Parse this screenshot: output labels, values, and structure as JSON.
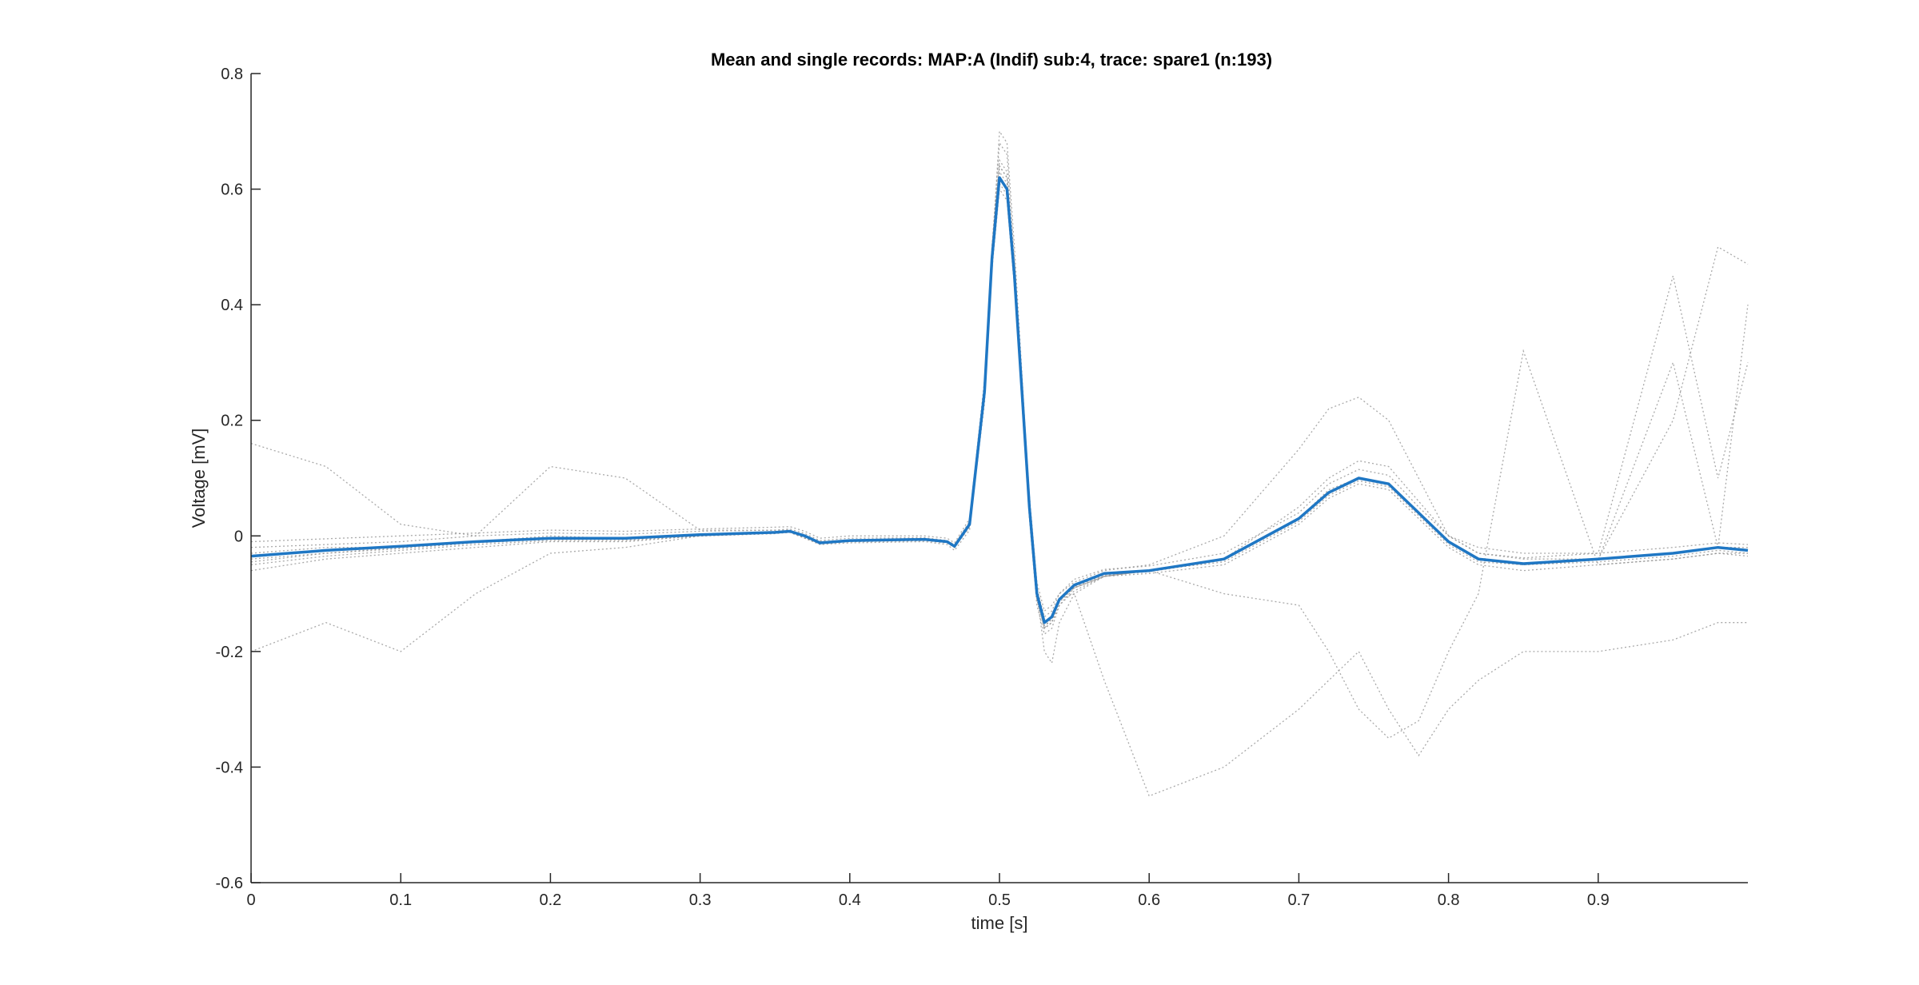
{
  "chart_data": {
    "type": "line",
    "title": "Mean and single records: MAP:A (Indif) sub:4, trace: spare1 (n:193)",
    "xlabel": "time [s]",
    "ylabel": "Voltage [mV]",
    "xlim": [
      0,
      1
    ],
    "ylim": [
      -0.6,
      0.8
    ],
    "xticks": [
      0,
      0.1,
      0.2,
      0.3,
      0.4,
      0.5,
      0.6,
      0.7,
      0.8,
      0.9
    ],
    "xtick_labels": [
      "0",
      "0.1",
      "0.2",
      "0.3",
      "0.4",
      "0.5",
      "0.6",
      "0.7",
      "0.8",
      "0.9"
    ],
    "yticks": [
      -0.6,
      -0.4,
      -0.2,
      0,
      0.2,
      0.4,
      0.6,
      0.8
    ],
    "ytick_labels": [
      "-0.6",
      "-0.4",
      "-0.2",
      "0",
      "0.2",
      "0.4",
      "0.6",
      "0.8"
    ],
    "grid": false,
    "colors": {
      "mean": "#1f77c4",
      "single": "#8c8c8c",
      "axis": "#262626"
    },
    "mean": {
      "x": [
        0,
        0.05,
        0.1,
        0.15,
        0.2,
        0.25,
        0.3,
        0.35,
        0.36,
        0.37,
        0.38,
        0.4,
        0.45,
        0.465,
        0.47,
        0.48,
        0.49,
        0.495,
        0.5,
        0.505,
        0.51,
        0.515,
        0.52,
        0.525,
        0.53,
        0.535,
        0.54,
        0.55,
        0.57,
        0.6,
        0.65,
        0.7,
        0.72,
        0.74,
        0.76,
        0.78,
        0.8,
        0.82,
        0.85,
        0.9,
        0.95,
        0.98,
        1.0
      ],
      "y": [
        -0.035,
        -0.025,
        -0.018,
        -0.01,
        -0.004,
        -0.004,
        0.002,
        0.006,
        0.008,
        0.0,
        -0.012,
        -0.008,
        -0.006,
        -0.01,
        -0.018,
        0.02,
        0.25,
        0.48,
        0.62,
        0.6,
        0.45,
        0.25,
        0.05,
        -0.1,
        -0.15,
        -0.14,
        -0.11,
        -0.085,
        -0.065,
        -0.06,
        -0.04,
        0.03,
        0.075,
        0.1,
        0.09,
        0.04,
        -0.01,
        -0.04,
        -0.048,
        -0.04,
        -0.03,
        -0.02,
        -0.025
      ]
    },
    "single_records": [
      {
        "x": [
          0,
          0.05,
          0.1,
          0.15,
          0.2,
          0.25,
          0.3,
          0.35,
          0.36,
          0.37,
          0.38,
          0.4,
          0.45,
          0.465,
          0.47,
          0.48,
          0.49,
          0.495,
          0.5,
          0.505,
          0.51,
          0.515,
          0.52,
          0.525,
          0.53,
          0.535,
          0.54,
          0.55,
          0.57,
          0.6,
          0.65,
          0.7,
          0.72,
          0.74,
          0.76,
          0.78,
          0.8,
          0.82,
          0.85,
          0.9,
          0.95,
          0.98,
          1.0
        ],
        "y": [
          -0.06,
          -0.04,
          -0.03,
          -0.02,
          -0.01,
          -0.01,
          0.0,
          0.005,
          0.006,
          -0.004,
          -0.015,
          -0.012,
          -0.01,
          -0.015,
          -0.025,
          0.01,
          0.24,
          0.47,
          0.61,
          0.59,
          0.44,
          0.23,
          0.03,
          -0.12,
          -0.17,
          -0.16,
          -0.12,
          -0.095,
          -0.07,
          -0.065,
          -0.05,
          0.02,
          0.065,
          0.09,
          0.08,
          0.03,
          -0.02,
          -0.05,
          -0.06,
          -0.05,
          -0.04,
          -0.03,
          -0.035
        ]
      },
      {
        "x": [
          0,
          0.05,
          0.1,
          0.15,
          0.2,
          0.25,
          0.3,
          0.35,
          0.36,
          0.37,
          0.38,
          0.4,
          0.45,
          0.465,
          0.47,
          0.48,
          0.49,
          0.495,
          0.5,
          0.505,
          0.51,
          0.515,
          0.52,
          0.525,
          0.53,
          0.535,
          0.54,
          0.55,
          0.57,
          0.6,
          0.65,
          0.7,
          0.72,
          0.74,
          0.76,
          0.78,
          0.8,
          0.82,
          0.85,
          0.9,
          0.95,
          0.98,
          1.0
        ],
        "y": [
          -0.01,
          -0.005,
          0.0,
          0.005,
          0.01,
          0.008,
          0.012,
          0.015,
          0.016,
          0.008,
          -0.004,
          0.0,
          0.0,
          -0.004,
          -0.012,
          0.03,
          0.27,
          0.5,
          0.65,
          0.63,
          0.47,
          0.27,
          0.07,
          -0.08,
          -0.13,
          -0.12,
          -0.1,
          -0.075,
          -0.058,
          -0.052,
          -0.03,
          0.04,
          0.09,
          0.115,
          0.105,
          0.05,
          0.0,
          -0.03,
          -0.038,
          -0.03,
          -0.02,
          -0.012,
          -0.015
        ]
      },
      {
        "x": [
          0,
          0.05,
          0.1,
          0.15,
          0.2,
          0.25,
          0.3,
          0.35,
          0.36,
          0.37,
          0.38,
          0.4,
          0.45,
          0.465,
          0.47,
          0.48,
          0.49,
          0.495,
          0.5,
          0.505,
          0.51,
          0.515,
          0.52,
          0.525,
          0.53,
          0.535,
          0.54,
          0.55,
          0.57,
          0.6,
          0.65,
          0.7,
          0.72,
          0.74,
          0.76,
          0.78,
          0.8,
          0.82,
          0.85,
          0.9,
          0.95,
          0.98,
          1.0
        ],
        "y": [
          0.16,
          0.12,
          0.02,
          0.0,
          0.12,
          0.1,
          0.01,
          0.01,
          0.01,
          0.0,
          -0.01,
          -0.008,
          -0.005,
          -0.01,
          -0.02,
          0.02,
          0.26,
          0.5,
          0.68,
          0.66,
          0.48,
          0.26,
          0.05,
          -0.1,
          -0.16,
          -0.15,
          -0.11,
          -0.09,
          -0.07,
          -0.06,
          -0.04,
          0.05,
          0.1,
          0.13,
          0.12,
          0.06,
          0.0,
          -0.03,
          -0.04,
          -0.04,
          -0.03,
          -0.02,
          -0.02
        ]
      },
      {
        "x": [
          0,
          0.05,
          0.1,
          0.15,
          0.2,
          0.25,
          0.3,
          0.35,
          0.36,
          0.37,
          0.38,
          0.4,
          0.45,
          0.465,
          0.47,
          0.48,
          0.49,
          0.495,
          0.5,
          0.505,
          0.51,
          0.515,
          0.52,
          0.525,
          0.53,
          0.535,
          0.54,
          0.55,
          0.57,
          0.6,
          0.65,
          0.7,
          0.72,
          0.74,
          0.76,
          0.78,
          0.8,
          0.82,
          0.85,
          0.9,
          0.95,
          0.98,
          1.0
        ],
        "y": [
          -0.2,
          -0.15,
          -0.2,
          -0.1,
          -0.03,
          -0.02,
          0.0,
          0.005,
          0.008,
          0.0,
          -0.01,
          -0.01,
          -0.008,
          -0.012,
          -0.02,
          0.02,
          0.25,
          0.49,
          0.64,
          0.62,
          0.46,
          0.25,
          0.04,
          -0.11,
          -0.16,
          -0.14,
          -0.11,
          -0.09,
          -0.07,
          -0.06,
          -0.045,
          0.025,
          0.07,
          0.095,
          0.085,
          0.035,
          -0.015,
          -0.045,
          -0.05,
          -0.045,
          -0.035,
          -0.025,
          -0.03
        ]
      },
      {
        "x": [
          0,
          0.05,
          0.1,
          0.15,
          0.2,
          0.25,
          0.3,
          0.35,
          0.36,
          0.37,
          0.38,
          0.4,
          0.45,
          0.465,
          0.47,
          0.48,
          0.49,
          0.495,
          0.5,
          0.505,
          0.51,
          0.515,
          0.52,
          0.525,
          0.53,
          0.535,
          0.54,
          0.55,
          0.57,
          0.6,
          0.65,
          0.7,
          0.72,
          0.74,
          0.76,
          0.78,
          0.8,
          0.82,
          0.85,
          0.9,
          0.95,
          0.98,
          1.0
        ],
        "y": [
          -0.04,
          -0.03,
          -0.02,
          -0.01,
          0.0,
          -0.005,
          0.0,
          0.004,
          0.007,
          -0.002,
          -0.012,
          -0.008,
          -0.006,
          -0.01,
          -0.018,
          0.018,
          0.24,
          0.48,
          0.7,
          0.68,
          0.5,
          0.28,
          0.06,
          -0.1,
          -0.2,
          -0.22,
          -0.15,
          -0.1,
          -0.07,
          -0.06,
          -0.04,
          0.03,
          0.08,
          0.1,
          0.09,
          0.04,
          -0.01,
          -0.04,
          -0.05,
          -0.04,
          0.2,
          0.5,
          0.47
        ]
      },
      {
        "x": [
          0,
          0.05,
          0.1,
          0.15,
          0.2,
          0.25,
          0.3,
          0.35,
          0.36,
          0.37,
          0.38,
          0.4,
          0.45,
          0.465,
          0.47,
          0.48,
          0.49,
          0.495,
          0.5,
          0.505,
          0.51,
          0.515,
          0.52,
          0.525,
          0.53,
          0.535,
          0.54,
          0.55,
          0.57,
          0.6,
          0.65,
          0.7,
          0.72,
          0.74,
          0.76,
          0.78,
          0.8,
          0.82,
          0.85,
          0.9,
          0.95,
          0.98,
          1.0
        ],
        "y": [
          -0.03,
          -0.02,
          -0.02,
          -0.01,
          -0.005,
          -0.005,
          0.002,
          0.005,
          0.008,
          0.0,
          -0.01,
          -0.008,
          -0.006,
          -0.01,
          -0.02,
          0.02,
          0.25,
          0.49,
          0.63,
          0.61,
          0.45,
          0.25,
          0.05,
          -0.1,
          -0.15,
          -0.14,
          -0.11,
          -0.1,
          -0.25,
          -0.45,
          -0.4,
          -0.3,
          -0.25,
          -0.2,
          -0.3,
          -0.38,
          -0.3,
          -0.25,
          -0.2,
          -0.2,
          -0.18,
          -0.15,
          -0.15
        ]
      },
      {
        "x": [
          0,
          0.05,
          0.1,
          0.15,
          0.2,
          0.25,
          0.3,
          0.35,
          0.36,
          0.37,
          0.38,
          0.4,
          0.45,
          0.465,
          0.47,
          0.48,
          0.49,
          0.495,
          0.5,
          0.505,
          0.51,
          0.515,
          0.52,
          0.525,
          0.53,
          0.535,
          0.54,
          0.55,
          0.57,
          0.6,
          0.65,
          0.7,
          0.72,
          0.74,
          0.76,
          0.78,
          0.8,
          0.82,
          0.85,
          0.9,
          0.95,
          0.98,
          1.0
        ],
        "y": [
          -0.05,
          -0.035,
          -0.025,
          -0.015,
          -0.008,
          -0.008,
          0.0,
          0.004,
          0.006,
          -0.004,
          -0.014,
          -0.01,
          -0.008,
          -0.012,
          -0.02,
          0.015,
          0.23,
          0.46,
          0.6,
          0.58,
          0.43,
          0.24,
          0.04,
          -0.11,
          -0.16,
          -0.15,
          -0.12,
          -0.09,
          -0.07,
          -0.06,
          -0.1,
          -0.12,
          -0.2,
          -0.3,
          -0.35,
          -0.32,
          -0.2,
          -0.1,
          0.32,
          -0.05,
          -0.04,
          -0.03,
          -0.03
        ]
      },
      {
        "x": [
          0,
          0.05,
          0.1,
          0.15,
          0.2,
          0.25,
          0.3,
          0.35,
          0.36,
          0.37,
          0.38,
          0.4,
          0.45,
          0.465,
          0.47,
          0.48,
          0.49,
          0.495,
          0.5,
          0.505,
          0.51,
          0.515,
          0.52,
          0.525,
          0.53,
          0.535,
          0.54,
          0.55,
          0.57,
          0.6,
          0.65,
          0.7,
          0.72,
          0.74,
          0.76,
          0.78,
          0.8,
          0.82,
          0.85,
          0.9,
          0.95,
          0.98,
          1.0
        ],
        "y": [
          -0.02,
          -0.015,
          -0.01,
          0.0,
          0.005,
          0.003,
          0.008,
          0.01,
          0.012,
          0.004,
          -0.008,
          -0.004,
          -0.003,
          -0.008,
          -0.015,
          0.025,
          0.26,
          0.5,
          0.64,
          0.62,
          0.46,
          0.26,
          0.06,
          -0.09,
          -0.14,
          -0.13,
          -0.1,
          -0.08,
          -0.06,
          -0.05,
          0.0,
          0.15,
          0.22,
          0.24,
          0.2,
          0.1,
          0.0,
          -0.02,
          -0.03,
          -0.03,
          0.45,
          0.1,
          0.3
        ]
      },
      {
        "x": [
          0,
          0.05,
          0.1,
          0.15,
          0.2,
          0.25,
          0.3,
          0.35,
          0.36,
          0.37,
          0.38,
          0.4,
          0.45,
          0.465,
          0.47,
          0.48,
          0.49,
          0.495,
          0.5,
          0.505,
          0.51,
          0.515,
          0.52,
          0.525,
          0.53,
          0.535,
          0.54,
          0.55,
          0.57,
          0.6,
          0.65,
          0.7,
          0.72,
          0.74,
          0.76,
          0.78,
          0.8,
          0.82,
          0.85,
          0.9,
          0.95,
          0.98,
          1.0
        ],
        "y": [
          -0.045,
          -0.03,
          -0.022,
          -0.012,
          -0.006,
          -0.006,
          0.001,
          0.005,
          0.007,
          -0.003,
          -0.013,
          -0.009,
          -0.007,
          -0.011,
          -0.019,
          0.016,
          0.24,
          0.47,
          0.62,
          0.6,
          0.44,
          0.24,
          0.045,
          -0.105,
          -0.155,
          -0.145,
          -0.115,
          -0.088,
          -0.068,
          -0.062,
          -0.042,
          0.028,
          0.073,
          0.098,
          0.088,
          0.038,
          -0.012,
          -0.042,
          -0.05,
          -0.042,
          0.3,
          -0.02,
          0.4
        ]
      }
    ]
  }
}
